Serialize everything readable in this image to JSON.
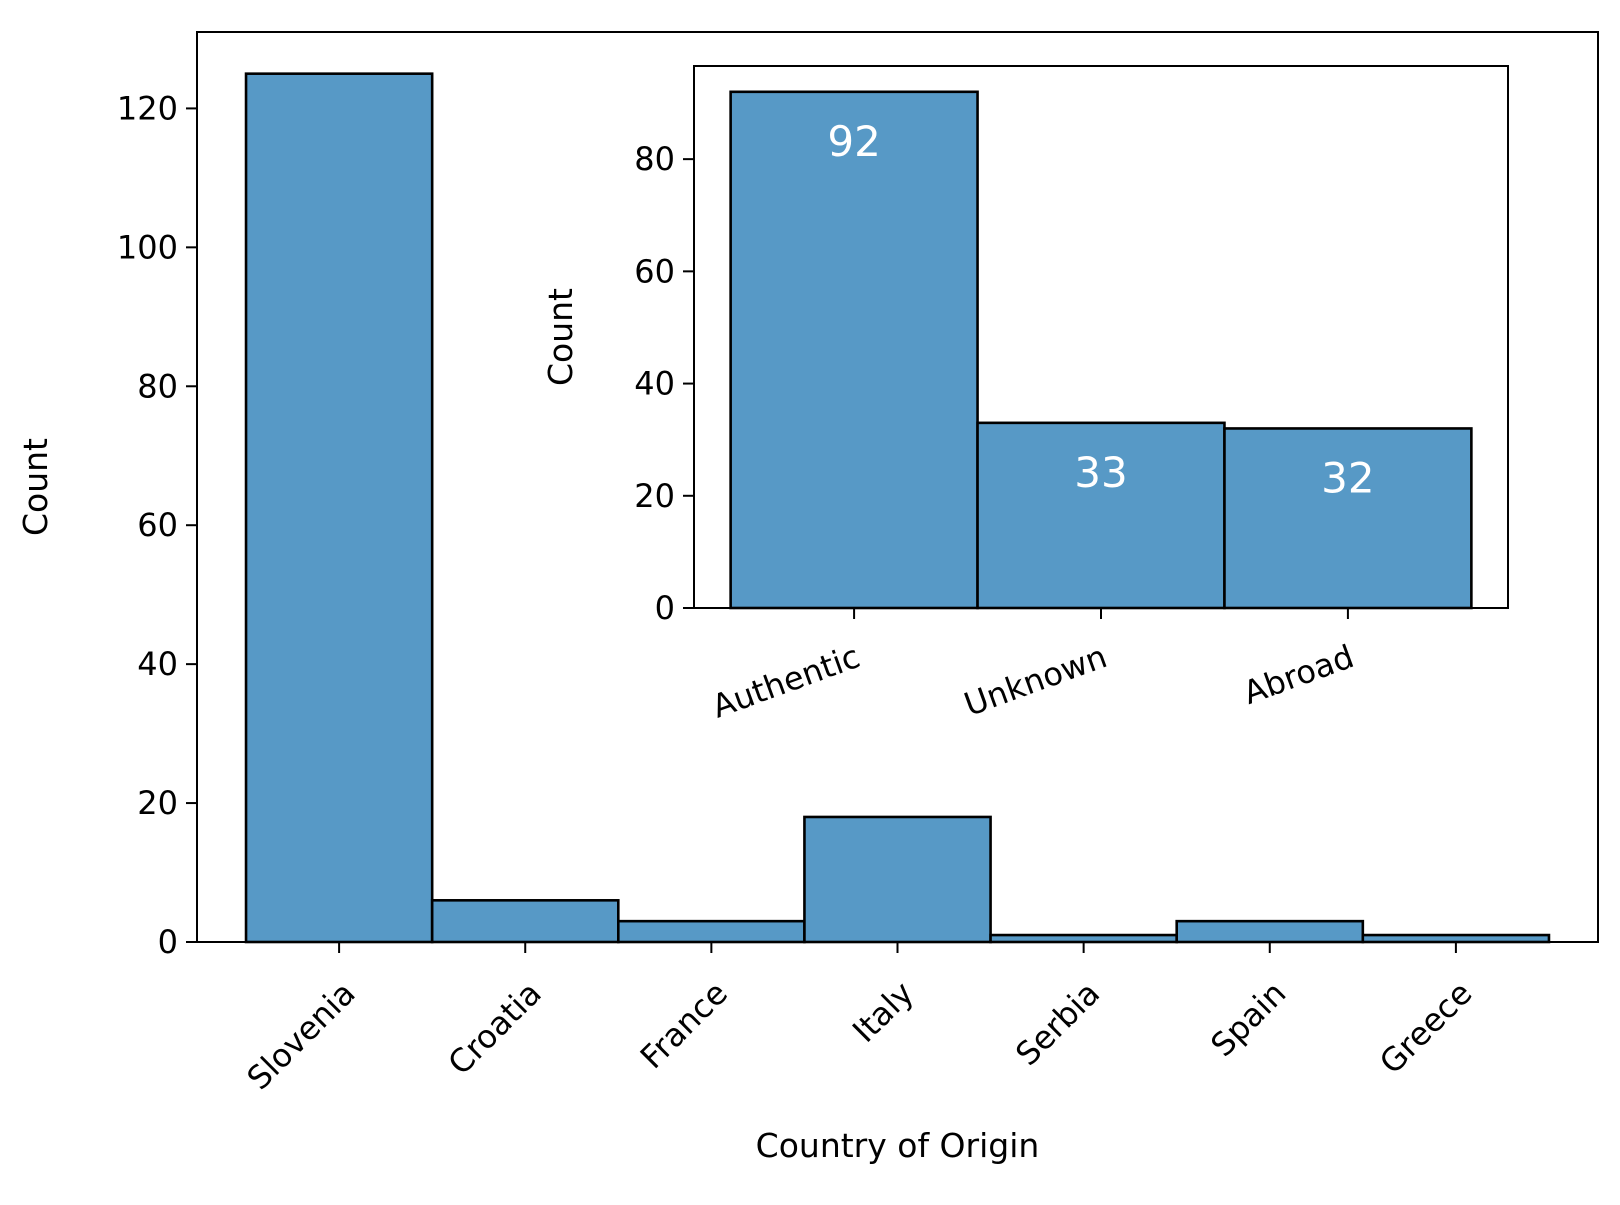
{
  "chart_data": [
    {
      "type": "bar",
      "role": "main",
      "categories": [
        "Slovenia",
        "Croatia",
        "France",
        "Italy",
        "Serbia",
        "Spain",
        "Greece"
      ],
      "values": [
        125,
        6,
        3,
        18,
        1,
        3,
        1
      ],
      "xlabel": "Country of Origin",
      "ylabel": "Count",
      "ylim": [
        0,
        131
      ],
      "yticks": [
        0,
        20,
        40,
        60,
        80,
        100,
        120
      ],
      "grid": false,
      "bar_color": "#5799c6",
      "edge_color": "#000000"
    },
    {
      "type": "bar",
      "role": "inset",
      "categories": [
        "Authentic",
        "Unknown",
        "Abroad"
      ],
      "values": [
        92,
        33,
        32
      ],
      "data_labels": [
        "92",
        "33",
        "32"
      ],
      "xlabel": "",
      "ylabel": "Count",
      "ylim": [
        0,
        96.6
      ],
      "yticks": [
        0,
        20,
        40,
        60,
        80
      ],
      "grid": false,
      "bar_color": "#5799c6",
      "edge_color": "#000000"
    }
  ]
}
